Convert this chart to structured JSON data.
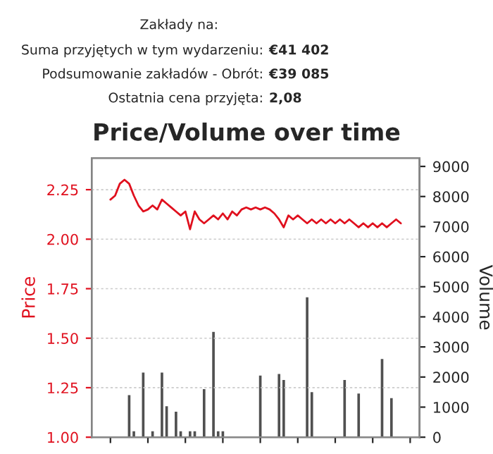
{
  "chart_data": {
    "type": "line",
    "title": "Price/Volume over time",
    "annotations": [
      "Zakłady na:",
      "Suma przyjętych w tym wydarzeniu:",
      "€41 402",
      "Podsumowanie zakładów - Obrót:",
      "€39 085",
      "Ostatnia cena przyjęta:",
      "2,08"
    ],
    "ylabel": "Price",
    "y2label": "Volume",
    "categories": [
      null,
      null,
      null,
      null,
      null,
      null,
      null,
      null,
      null,
      null,
      null,
      null,
      null,
      null,
      null,
      null,
      null,
      null,
      null,
      null,
      null,
      null,
      null,
      null,
      null,
      null,
      null,
      null,
      null,
      null,
      null,
      null,
      null,
      null,
      null,
      null,
      null,
      null,
      null,
      null,
      null,
      null,
      null,
      null,
      null,
      null,
      null,
      null,
      null,
      null,
      null,
      null,
      null,
      null,
      null,
      null,
      null,
      null,
      null,
      null,
      null,
      null,
      null
    ],
    "series": [
      {
        "name": null,
        "type": "bar",
        "axis": "y2",
        "color": "#505050",
        "values": [
          null,
          null,
          null,
          null,
          1400,
          200,
          null,
          2150,
          null,
          200,
          null,
          2150,
          1030,
          null,
          850,
          200,
          null,
          200,
          200,
          null,
          1600,
          null,
          3500,
          200,
          200,
          null,
          null,
          null,
          null,
          null,
          null,
          null,
          2050,
          null,
          null,
          null,
          2100,
          1900,
          null,
          null,
          null,
          null,
          4650,
          1500,
          null,
          null,
          null,
          null,
          null,
          null,
          1900,
          null,
          null,
          1450,
          null,
          null,
          null,
          null,
          2600,
          null,
          1300,
          null,
          null
        ]
      },
      {
        "name": null,
        "axis": "y",
        "color": "#e0101e",
        "values": [
          2.2,
          2.22,
          2.28,
          2.3,
          2.28,
          2.22,
          2.17,
          2.14,
          2.15,
          2.17,
          2.15,
          2.2,
          2.18,
          2.16,
          2.14,
          2.12,
          2.14,
          2.05,
          2.14,
          2.1,
          2.08,
          2.1,
          2.12,
          2.1,
          2.13,
          2.1,
          2.14,
          2.12,
          2.15,
          2.16,
          2.15,
          2.16,
          2.15,
          2.16,
          2.15,
          2.13,
          2.1,
          2.06,
          2.12,
          2.1,
          2.12,
          2.1,
          2.08,
          2.1,
          2.08,
          2.1,
          2.08,
          2.1,
          2.08,
          2.1,
          2.08,
          2.1,
          2.08,
          2.06,
          2.08,
          2.06,
          2.08,
          2.06,
          2.08,
          2.06,
          2.08,
          2.1,
          2.08
        ]
      }
    ],
    "ylim": [
      1.0,
      2.41
    ],
    "yticks": [
      {
        "value": 1.0,
        "label": "1.00"
      },
      {
        "value": 1.25,
        "label": "1.25"
      },
      {
        "value": 1.5,
        "label": "1.50"
      },
      {
        "value": 1.75,
        "label": "1.75"
      },
      {
        "value": 2.0,
        "label": "2.00"
      },
      {
        "value": 2.25,
        "label": "2.25"
      }
    ],
    "y2lim": [
      0,
      9280
    ],
    "y2ticks": [
      0,
      1000,
      2000,
      3000,
      4000,
      5000,
      6000,
      7000,
      8000,
      9000
    ],
    "grid": "y",
    "legend": false,
    "marker": "none",
    "line_style": "solid"
  }
}
